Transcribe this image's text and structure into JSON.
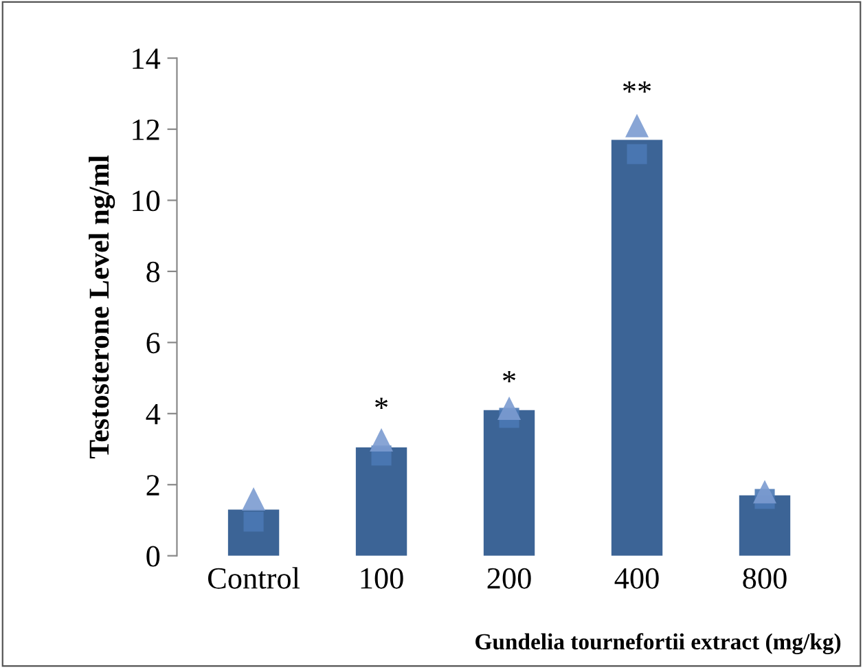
{
  "chart_data": {
    "type": "bar",
    "xlabel": "Gundelia tournefortii extract (mg/kg)",
    "ylabel": "Testosterone Level ng/ml",
    "categories": [
      "Control",
      "100",
      "200",
      "400",
      "800"
    ],
    "series": [
      {
        "color": "#3c6496",
        "values": [
          1.3,
          3.05,
          4.1,
          11.7,
          1.7
        ]
      },
      {
        "type": "scatter",
        "marker": "square",
        "color": "#4a78b4",
        "values": [
          0.96,
          2.82,
          3.88,
          11.3,
          1.6
        ]
      },
      {
        "type": "scatter",
        "marker": "triangle",
        "color": "#7b9bd0",
        "values": [
          1.6,
          3.26,
          4.15,
          12.1,
          1.8
        ]
      }
    ],
    "ylim": [
      0,
      14
    ],
    "yticks": [
      0,
      2,
      4,
      6,
      8,
      10,
      12,
      14
    ],
    "grid": false,
    "annotations": [
      {
        "text": "*",
        "x": "100",
        "y": 3.7
      },
      {
        "text": "*",
        "x": "200",
        "y": 4.45
      },
      {
        "text": "**",
        "x": "400",
        "y": 12.6
      }
    ]
  }
}
